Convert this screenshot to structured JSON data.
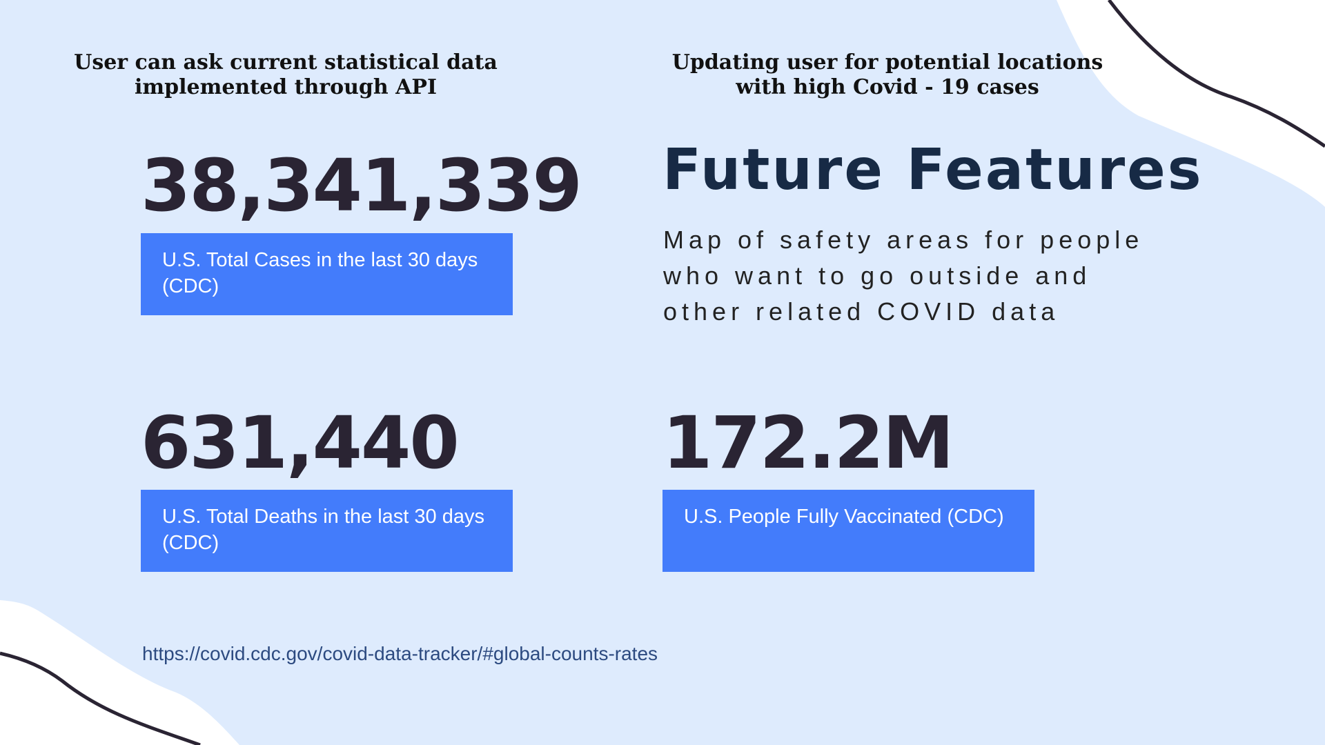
{
  "headings": {
    "left": "User can ask current statistical data implemented through API",
    "right": "Updating user for potential locations with high Covid - 19 cases"
  },
  "stats": [
    {
      "value": "38,341,339",
      "label": "U.S. Total Cases in the last 30 days (CDC)"
    },
    {
      "value": "631,440",
      "label": "U.S. Total Deaths in the last 30 days (CDC)"
    },
    {
      "value": "172.2M",
      "label": "U.S. People Fully Vaccinated (CDC)"
    }
  ],
  "future": {
    "title": "Future Features",
    "description": "Map of safety areas for people who want to go outside and other related COVID data"
  },
  "source_url": "https://covid.cdc.gov/covid-data-tracker/#global-counts-rates",
  "colors": {
    "background": "#deebfd",
    "accent": "#437cfb",
    "title": "#172a45",
    "numbers": "#2a2433",
    "link": "#2c4a80"
  }
}
